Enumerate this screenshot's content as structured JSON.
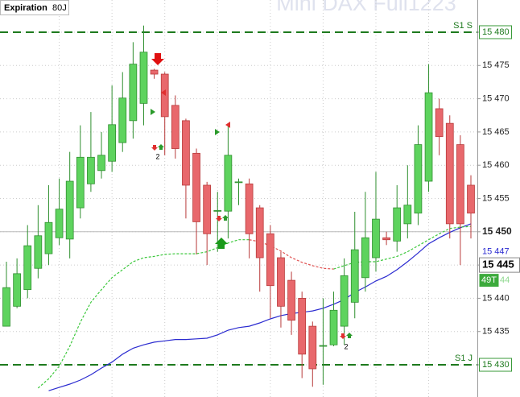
{
  "chart_data": {
    "type": "candlestick",
    "title": "Expiration",
    "subtitle": "80J",
    "watermark": "Mini DAX Full1223",
    "up_color": "#5ed35e",
    "down_color": "#e8686c",
    "open": [
      15435.8,
      15438.8,
      15441.3,
      15444.5,
      15446.7,
      15449.1,
      15448.9,
      15453.6,
      15457.2,
      15459.2,
      15460.6,
      15463.4,
      15466.7,
      15469.3,
      15474.3,
      15473.7,
      15469,
      15466.7,
      15461.8,
      15457,
      15453.1,
      15453.1,
      15457.4,
      15457.2,
      15453.6,
      15449.7,
      15446.1,
      15442.7,
      15440,
      15435.8,
      15432.8,
      15433,
      15435.8,
      15439.4,
      15443.1,
      15446.1,
      15449.1,
      15448.6,
      15451.2,
      15452.8,
      15457.6,
      15468.5,
      15466.3,
      15463.1,
      15457
    ],
    "high": [
      15445.5,
      15446,
      15451,
      15454,
      15457,
      15458,
      15462,
      15466,
      15468,
      15465,
      15472,
      15474,
      15478.5,
      15481,
      15474.5,
      15474,
      15470.5,
      15467,
      15462.5,
      15457.5,
      15456,
      15466,
      15458,
      15458,
      15454,
      15451,
      15447,
      15444,
      15441,
      15436.5,
      15440,
      15441,
      15446,
      15453,
      15456,
      15459,
      15450,
      15457,
      15460,
      15466,
      15475.2,
      15470,
      15467.5,
      15464.5,
      15458.5
    ],
    "low": [
      15435.8,
      15438.5,
      15440,
      15443,
      15445,
      15448,
      15446,
      15452,
      15456,
      15458,
      15459,
      15462,
      15464,
      15466,
      15473,
      15461.5,
      15461,
      15452,
      15446.6,
      15445,
      15447,
      15449,
      15454,
      15446,
      15441,
      15437,
      15435.6,
      15434.5,
      15428,
      15426.7,
      15427,
      15432.8,
      15433,
      15437,
      15441,
      15444,
      15448,
      15447,
      15449,
      15451,
      15456,
      15461.5,
      15449,
      15445,
      15449
    ],
    "close": [
      15441.6,
      15443.7,
      15447.9,
      15449.4,
      15451.4,
      15453.4,
      15457.6,
      15461.2,
      15461.2,
      15461.5,
      15466.1,
      15470.1,
      15475.2,
      15477,
      15473.7,
      15467.3,
      15462.5,
      15457,
      15451.5,
      15449.7,
      15453.2,
      15461.5,
      15457.5,
      15449.7,
      15446.1,
      15441.9,
      15438.8,
      15436.7,
      15431.6,
      15429.4,
      15432.9,
      15438.2,
      15443.4,
      15447.3,
      15449.1,
      15451.9,
      15448.8,
      15453.6,
      15454,
      15463.1,
      15470.9,
      15464.3,
      15451.2,
      15451.2,
      15452.8
    ],
    "lines": [
      {
        "color": "#2b2bd0",
        "dash": false,
        "values": [
          null,
          null,
          null,
          null,
          15426.1,
          15426.6,
          15427.1,
          15427.7,
          15428.5,
          15429.5,
          15430.4,
          15431.6,
          15432.5,
          15433,
          15433.4,
          15433.6,
          15433.8,
          15433.8,
          15433.9,
          15434,
          15434.5,
          15435.2,
          15435.6,
          15435.8,
          15436.3,
          15436.9,
          15437.4,
          15437.7,
          15437.9,
          15438.1,
          15438.5,
          15439.1,
          15439.8,
          15440.9,
          15441.7,
          15442.6,
          15443.3,
          15444.3,
          15445.5,
          15446.8,
          15448.2,
          15449.1,
          15449.9,
          15450.6,
          15451.2
        ]
      },
      {
        "color": "#3cc83c",
        "dash": true,
        "values": [
          null,
          null,
          null,
          15426.5,
          15427.9,
          15429.8,
          15432.8,
          15436.4,
          15439.4,
          15441.3,
          15443.1,
          15444.3,
          15445.5,
          15446.1,
          15446.3,
          15446.6,
          15446.7,
          15446.7,
          15446.7,
          15447,
          15447.6,
          15448.3,
          15448.8,
          15448.8,
          null,
          null,
          null,
          null,
          null,
          null,
          null,
          15444.4,
          15444.9,
          15445.4,
          15445.5,
          15445.5,
          15445.9,
          15446.3,
          15447,
          15447.9,
          15448.8,
          15449.7,
          15450.5,
          15450.7,
          15450.8
        ]
      },
      {
        "color": "#e05050",
        "dash": true,
        "values": [
          null,
          null,
          null,
          null,
          null,
          null,
          null,
          null,
          null,
          null,
          null,
          null,
          null,
          null,
          null,
          null,
          null,
          null,
          null,
          null,
          null,
          null,
          null,
          15448.8,
          15448.5,
          15447.9,
          15447.1,
          15446.1,
          15445.4,
          15444.9,
          15444.5,
          15444.4,
          null,
          null,
          null,
          null,
          null,
          null,
          null,
          null,
          null,
          null,
          null,
          null,
          null
        ]
      }
    ],
    "levels": [
      {
        "label": "S1 S",
        "value": 15480,
        "value_label": "15 480"
      },
      {
        "label": "S1 J",
        "value": 15430,
        "value_label": "15 430"
      }
    ],
    "reference_line": 15450,
    "ma_price": {
      "value": 15447,
      "label": "15 447"
    },
    "last_price": {
      "value": 15445,
      "label": "15 445"
    },
    "timer": "49T",
    "timer_value": "44",
    "annotations": [
      {
        "label": "2"
      },
      {
        "label": "2"
      }
    ],
    "ylim": [
      15425.16,
      15484.84
    ],
    "yticks": [
      {
        "value": 15430,
        "label": "15 430"
      },
      {
        "value": 15435,
        "label": "15 435"
      },
      {
        "value": 15440,
        "label": "15 440"
      },
      {
        "value": 15445,
        "label": "15 445"
      },
      {
        "value": 15450,
        "label": "15 450"
      },
      {
        "value": 15455,
        "label": "15 455"
      },
      {
        "value": 15460,
        "label": "15 460"
      },
      {
        "value": 15465,
        "label": "15 465"
      },
      {
        "value": 15470,
        "label": "15 470"
      },
      {
        "value": 15475,
        "label": "15 475"
      },
      {
        "value": 15480,
        "label": "15 480"
      }
    ],
    "grid": true
  }
}
